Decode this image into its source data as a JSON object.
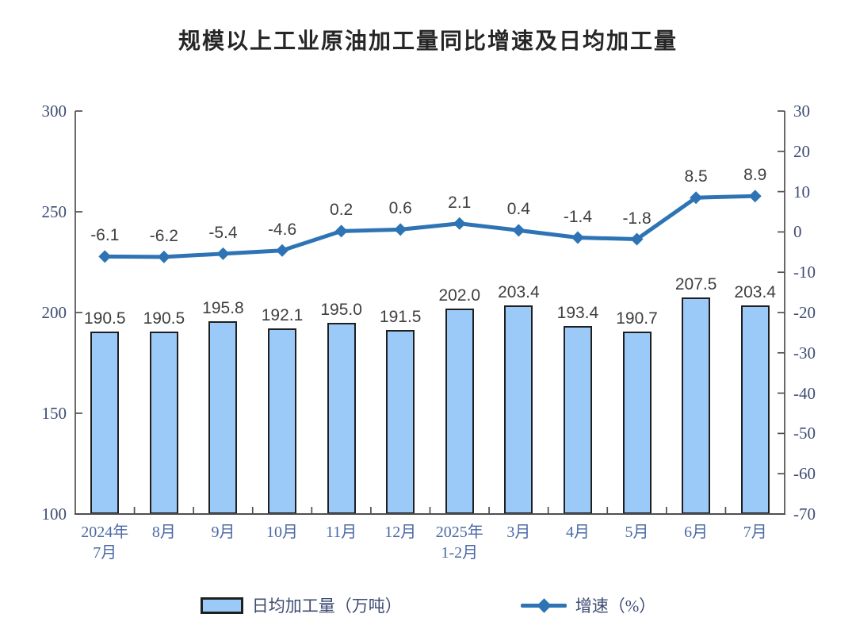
{
  "chart_data": {
    "type": "combo",
    "title": "规模以上工业原油加工量同比增速及日均加工量",
    "categories": [
      "2024年\n7月",
      "8月",
      "9月",
      "10月",
      "11月",
      "12月",
      "2025年\n1-2月",
      "3月",
      "4月",
      "5月",
      "6月",
      "7月"
    ],
    "series": [
      {
        "name": "日均加工量（万吨）",
        "type": "bar",
        "axis": "left",
        "values": [
          190.5,
          190.5,
          195.8,
          192.1,
          195.0,
          191.5,
          202.0,
          203.4,
          193.4,
          190.7,
          207.5,
          203.4
        ]
      },
      {
        "name": "增速（%）",
        "type": "line",
        "axis": "right",
        "values": [
          -6.1,
          -6.2,
          -5.4,
          -4.6,
          0.2,
          0.6,
          2.1,
          0.4,
          -1.4,
          -1.8,
          8.5,
          8.9
        ]
      }
    ],
    "left_axis": {
      "min": 100,
      "max": 300,
      "step": 50,
      "ticks": [
        "300",
        "250",
        "200",
        "150",
        "100"
      ]
    },
    "right_axis": {
      "min": -70,
      "max": 30,
      "step": 10,
      "ticks": [
        "30",
        "20",
        "10",
        "0",
        "-10",
        "-20",
        "-30",
        "-40",
        "-50",
        "-60",
        "-70"
      ]
    },
    "grid": false,
    "legend_position": "bottom",
    "value_labels_shown": true,
    "colors": {
      "bar_fill": "#9ccaf8",
      "bar_border": "#1f1f1f",
      "line": "#2e74b5",
      "axis": "#4f4f4f",
      "value_label": "#3f3f3f",
      "axis_label": "#3e4c74",
      "xaxis_label": "#4b69a6"
    }
  }
}
